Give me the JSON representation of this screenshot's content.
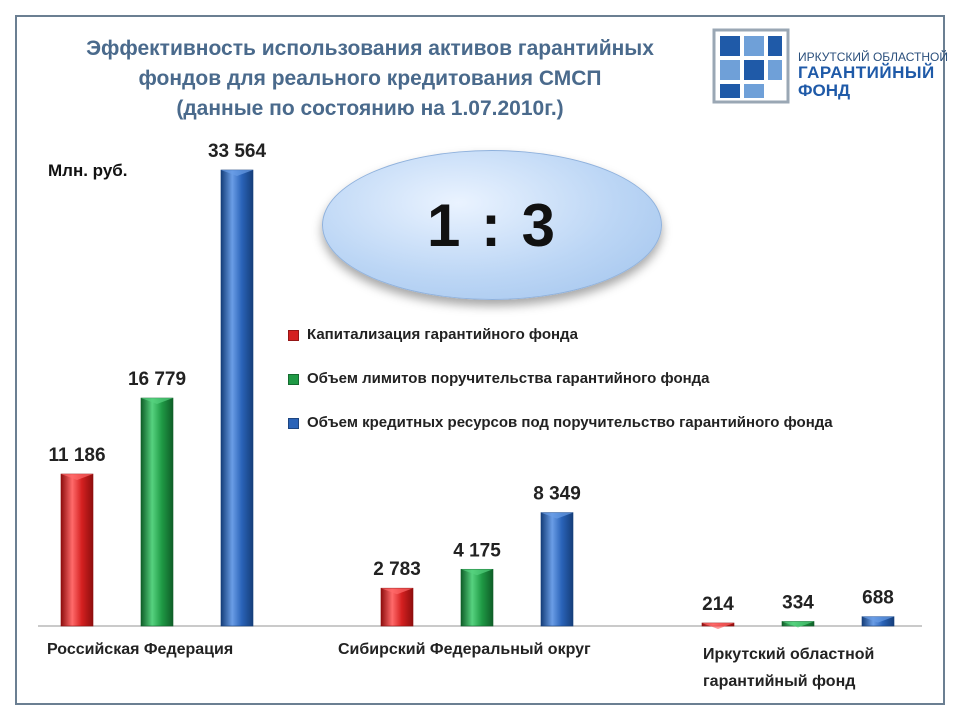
{
  "title_lines": [
    "Эффективность использования активов гарантийных",
    "фондов для реального кредитования СМСП",
    "(данные по состоянию на 1.07.2010г.)"
  ],
  "logo": {
    "line1": "ИРКУТСКИЙ ОБЛАСТНОЙ",
    "line2": "ГАРАНТИЙНЫЙ",
    "line3": "ФОНД"
  },
  "ratio_text": "1 : 3",
  "colors": {
    "red": "#d42020",
    "green": "#1f9a45",
    "blue": "#2a63b8"
  },
  "chart_data": {
    "type": "bar",
    "ylabel": "Млн. руб.",
    "categories": [
      "Российская Федерация",
      "Сибирский Федеральный округ",
      "Иркутский областной гарантийный фонд"
    ],
    "series": [
      {
        "name": "Капитализация гарантийного фонда",
        "values": [
          11186,
          2783,
          214
        ],
        "labels": [
          "11 186",
          "2 783",
          "214"
        ]
      },
      {
        "name": "Объем лимитов поручительства гарантийного фонда",
        "values": [
          16779,
          4175,
          334
        ],
        "labels": [
          "16 779",
          "4 175",
          "334"
        ]
      },
      {
        "name": "Объем кредитных ресурсов под поручительство гарантийного фонда",
        "values": [
          33564,
          8349,
          688
        ],
        "labels": [
          "33 564",
          "8 349",
          "688"
        ]
      }
    ],
    "ylim": [
      0,
      33564
    ],
    "grid": false,
    "legend_position": "center-right"
  }
}
